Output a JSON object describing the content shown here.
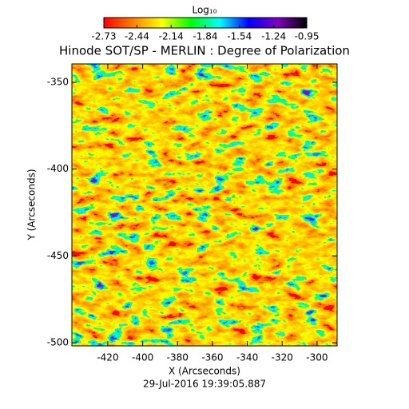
{
  "chart_data": {
    "type": "heatmap",
    "title": "Hinode SOT/SP - MERLIN : Degree of Polarization",
    "colorbar_label": "Log₁₀",
    "x_label": "X (Arcseconds)",
    "y_label": "Y (Arcseconds)",
    "footer": "29-Jul-2016 19:39:05.887",
    "xlim": [
      -440.6,
      -288.5
    ],
    "xticks": [
      -420,
      -400,
      -380,
      -360,
      -340,
      -320,
      -300
    ],
    "ylim": [
      -501.8,
      -339.4
    ],
    "yticks": [
      -350,
      -400,
      -450,
      -500
    ],
    "zlim": [
      -2.73,
      -0.95
    ],
    "zticks": [
      -2.73,
      -2.44,
      -2.14,
      -1.84,
      -1.54,
      -1.24,
      -0.95
    ],
    "colormap": [
      "#ff0000",
      "#ff8000",
      "#ffff00",
      "#00ff00",
      "#00ffff",
      "#0000ff",
      "#8000c0",
      "#000000"
    ]
  }
}
